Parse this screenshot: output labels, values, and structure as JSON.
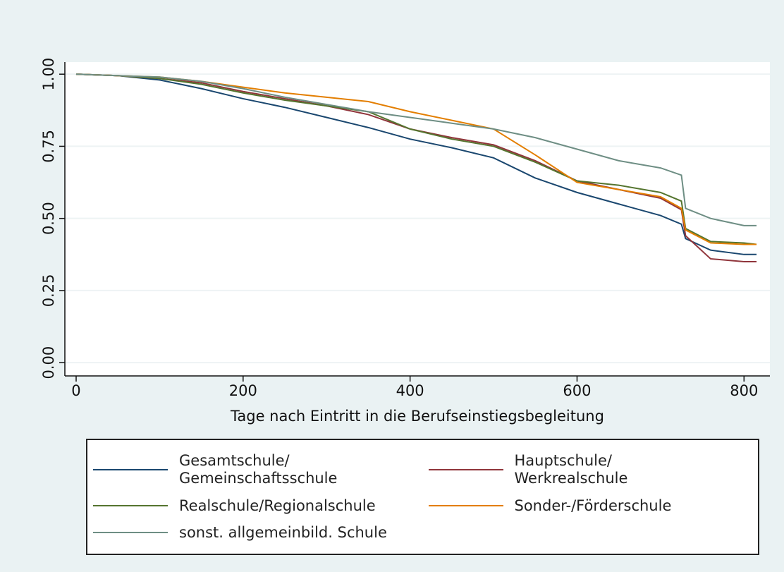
{
  "chart_data": {
    "type": "line",
    "xlabel": "Tage nach Eintritt in die Berufseinstiegsbegleitung",
    "x": [
      0,
      50,
      100,
      150,
      200,
      250,
      300,
      350,
      400,
      450,
      500,
      550,
      600,
      650,
      700,
      725,
      730,
      760,
      800,
      815
    ],
    "series": [
      {
        "name": "Gesamtschule/\nGemeinschaftsschule",
        "color": "#1a476f",
        "values": [
          1,
          0.995,
          0.98,
          0.95,
          0.915,
          0.885,
          0.85,
          0.815,
          0.775,
          0.745,
          0.71,
          0.64,
          0.59,
          0.55,
          0.51,
          0.48,
          0.43,
          0.39,
          0.375,
          0.375
        ]
      },
      {
        "name": "Hauptschule/\nWerkrealschule",
        "color": "#90353b",
        "values": [
          1,
          0.995,
          0.985,
          0.97,
          0.94,
          0.915,
          0.89,
          0.86,
          0.81,
          0.78,
          0.755,
          0.7,
          0.63,
          0.6,
          0.57,
          0.53,
          0.44,
          0.36,
          0.35,
          0.35
        ]
      },
      {
        "name": "Realschule/Regionalschule",
        "color": "#55752f",
        "values": [
          1,
          0.995,
          0.985,
          0.965,
          0.935,
          0.91,
          0.89,
          0.87,
          0.81,
          0.775,
          0.75,
          0.695,
          0.63,
          0.615,
          0.59,
          0.56,
          0.465,
          0.42,
          0.415,
          0.41
        ]
      },
      {
        "name": "Sonder-/Förderschule",
        "color": "#e37e00",
        "values": [
          1,
          0.995,
          0.99,
          0.975,
          0.955,
          0.935,
          0.92,
          0.905,
          0.87,
          0.84,
          0.81,
          0.72,
          0.625,
          0.6,
          0.575,
          0.535,
          0.46,
          0.415,
          0.41,
          0.41
        ]
      },
      {
        "name": "sonst. allgemeinbild. Schule",
        "color": "#6e8e84",
        "values": [
          1,
          0.995,
          0.99,
          0.975,
          0.95,
          0.92,
          0.895,
          0.87,
          0.85,
          0.83,
          0.81,
          0.78,
          0.74,
          0.7,
          0.675,
          0.65,
          0.535,
          0.5,
          0.475,
          0.475
        ]
      }
    ],
    "xlim": [
      -13.5,
      831
    ],
    "xticks": [
      0,
      200,
      400,
      600,
      800
    ],
    "ylim": [
      -0.046,
      1.042
    ],
    "yticks": [
      {
        "value": 0,
        "label": "0.00"
      },
      {
        "value": 0.25,
        "label": "0.25"
      },
      {
        "value": 0.5,
        "label": "0.50"
      },
      {
        "value": 0.75,
        "label": "0.75"
      },
      {
        "value": 1,
        "label": "1.00"
      }
    ],
    "grid": true
  }
}
